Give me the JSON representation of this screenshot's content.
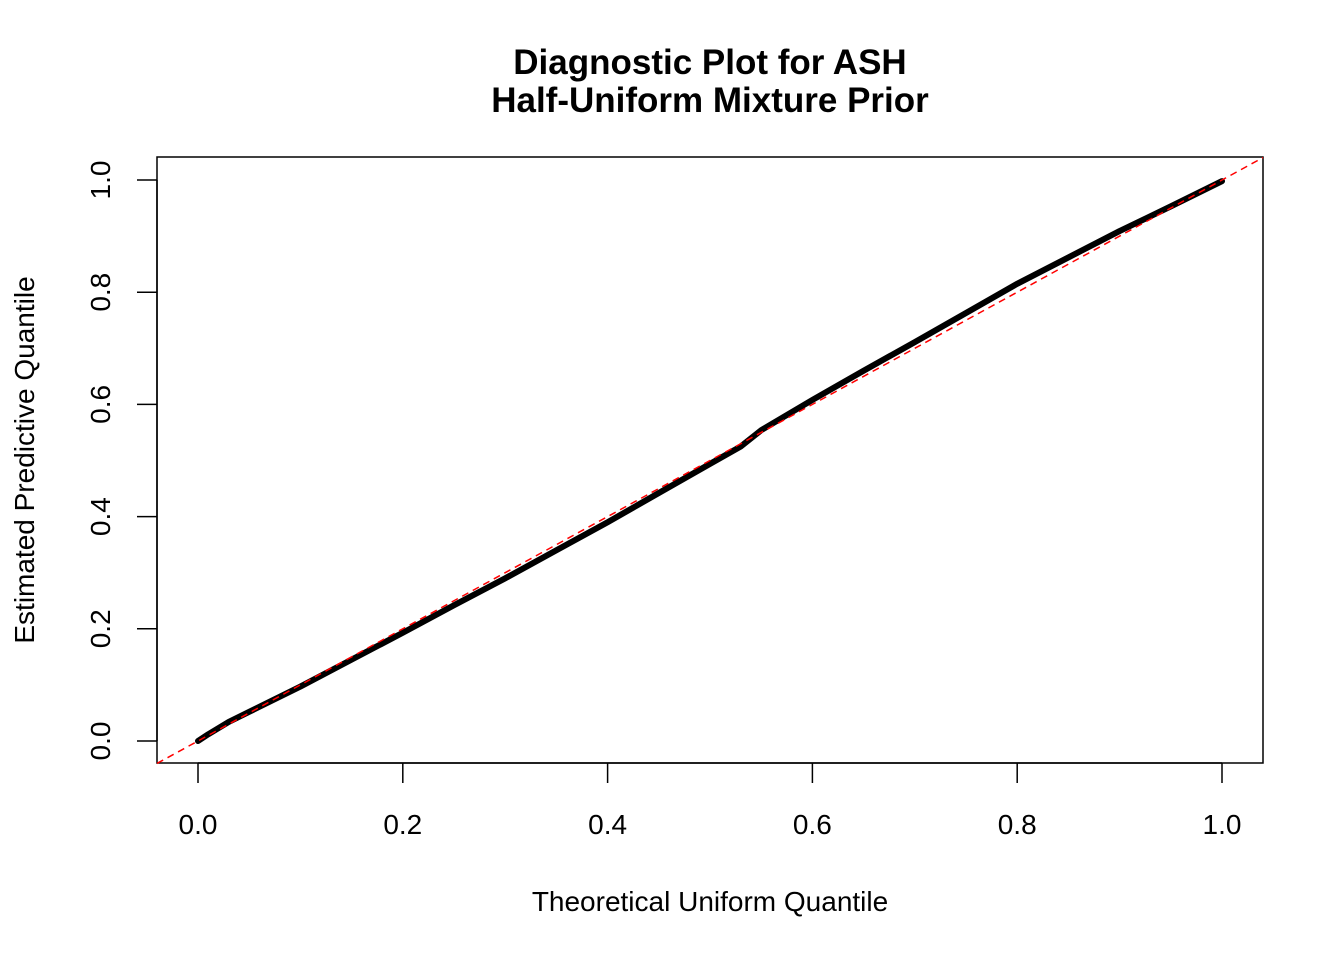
{
  "chart_data": {
    "type": "line",
    "title": "Diagnostic Plot for ASH",
    "subtitle": "Half-Uniform Mixture Prior",
    "xlabel": "Theoretical Uniform Quantile",
    "ylabel": "Estimated Predictive Quantile",
    "xlim": [
      -0.04,
      1.04
    ],
    "ylim": [
      -0.04,
      1.04
    ],
    "xticks": [
      "0.0",
      "0.2",
      "0.4",
      "0.6",
      "0.8",
      "1.0"
    ],
    "yticks": [
      "0.0",
      "0.2",
      "0.4",
      "0.6",
      "0.8",
      "1.0"
    ],
    "grid": false,
    "series": [
      {
        "color": "#000000",
        "x": [
          0.0,
          0.01,
          0.03,
          0.05,
          0.1,
          0.15,
          0.2,
          0.25,
          0.3,
          0.35,
          0.4,
          0.45,
          0.5,
          0.53,
          0.55,
          0.6,
          0.65,
          0.7,
          0.75,
          0.8,
          0.85,
          0.9,
          0.95,
          1.0
        ],
        "y": [
          0.0,
          0.012,
          0.034,
          0.052,
          0.097,
          0.145,
          0.193,
          0.242,
          0.29,
          0.34,
          0.39,
          0.442,
          0.494,
          0.525,
          0.554,
          0.608,
          0.66,
          0.711,
          0.763,
          0.815,
          0.862,
          0.909,
          0.953,
          0.998
        ]
      }
    ],
    "reference_line": {
      "type": "y=x",
      "color": "#ff0000",
      "style": "dashed"
    }
  }
}
